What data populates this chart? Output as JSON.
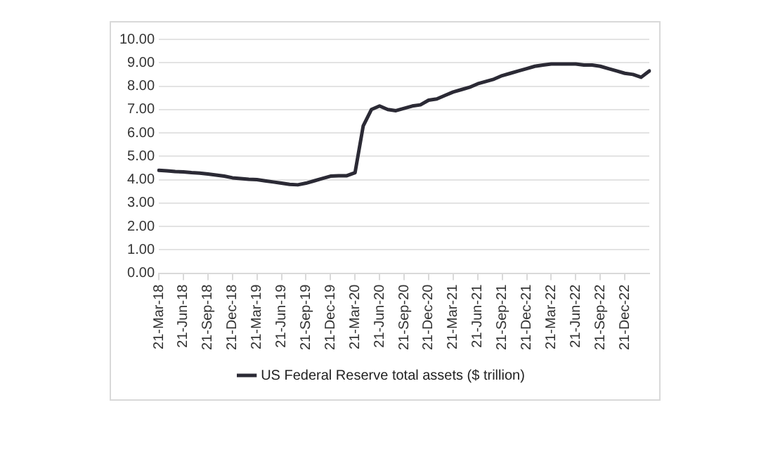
{
  "chart_data": {
    "type": "line",
    "categories": [
      "21-Mar-18",
      null,
      null,
      "21-Jun-18",
      null,
      null,
      "21-Sep-18",
      null,
      null,
      "21-Dec-18",
      null,
      null,
      "21-Mar-19",
      null,
      null,
      "21-Jun-19",
      null,
      null,
      "21-Sep-19",
      null,
      null,
      "21-Dec-19",
      null,
      null,
      "21-Mar-20",
      null,
      null,
      "21-Jun-20",
      null,
      null,
      "21-Sep-20",
      null,
      null,
      "21-Dec-20",
      null,
      null,
      "21-Mar-21",
      null,
      null,
      "21-Jun-21",
      null,
      null,
      "21-Sep-21",
      null,
      null,
      "21-Dec-21",
      null,
      null,
      "21-Mar-22",
      null,
      null,
      "21-Jun-22",
      null,
      null,
      "21-Sep-22",
      null,
      null,
      "21-Dec-22",
      null,
      null,
      null
    ],
    "series": [
      {
        "name": "US Federal Reserve total assets ($ trillion)",
        "color": "#2b2a35",
        "values": [
          4.4,
          4.38,
          4.35,
          4.33,
          4.3,
          4.28,
          4.24,
          4.2,
          4.15,
          4.08,
          4.05,
          4.02,
          4.0,
          3.95,
          3.9,
          3.85,
          3.8,
          3.78,
          3.85,
          3.95,
          4.05,
          4.15,
          4.17,
          4.17,
          4.3,
          6.3,
          7.0,
          7.15,
          7.0,
          6.95,
          7.05,
          7.15,
          7.2,
          7.4,
          7.45,
          7.6,
          7.75,
          7.85,
          7.95,
          8.1,
          8.2,
          8.3,
          8.45,
          8.55,
          8.65,
          8.75,
          8.85,
          8.9,
          8.95,
          8.95,
          8.95,
          8.95,
          8.9,
          8.9,
          8.85,
          8.75,
          8.65,
          8.55,
          8.5,
          8.38,
          8.65
        ]
      }
    ],
    "ylim": [
      0,
      10
    ],
    "yticks": [
      {
        "value": 0,
        "label": "0.00"
      },
      {
        "value": 1,
        "label": "1.00"
      },
      {
        "value": 2,
        "label": "2.00"
      },
      {
        "value": 3,
        "label": "3.00"
      },
      {
        "value": 4,
        "label": "4.00"
      },
      {
        "value": 5,
        "label": "5.00"
      },
      {
        "value": 6,
        "label": "6.00"
      },
      {
        "value": 7,
        "label": "7.00"
      },
      {
        "value": 8,
        "label": "8.00"
      },
      {
        "value": 9,
        "label": "9.00"
      },
      {
        "value": 10,
        "label": "10.00"
      }
    ],
    "grid": "y",
    "legend": "bottom",
    "marker": "none",
    "line_style": "solid"
  }
}
